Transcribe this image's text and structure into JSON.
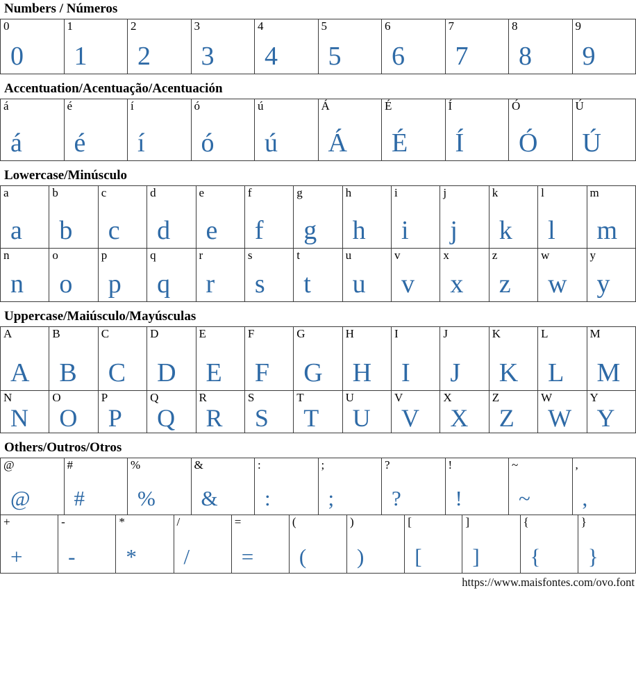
{
  "page": {
    "footer_url": "https://www.maisfontes.com/ovo.font",
    "glyph_color": "#2e6aa6",
    "label_color": "#000000",
    "border_color": "#3c3c3c",
    "background": "#ffffff"
  },
  "sections": [
    {
      "id": "numbers",
      "title": "Numbers / Números",
      "rows": [
        [
          "0",
          "1",
          "2",
          "3",
          "4",
          "5",
          "6",
          "7",
          "8",
          "9"
        ]
      ]
    },
    {
      "id": "accentuation",
      "title": "Accentuation/Acentuação/Acentuación",
      "rows": [
        [
          "á",
          "é",
          "í",
          "ó",
          "ú",
          "Á",
          "É",
          "Í",
          "Ó",
          "Ú"
        ]
      ]
    },
    {
      "id": "lowercase",
      "title": "Lowercase/Minúsculo",
      "rows": [
        [
          "a",
          "b",
          "c",
          "d",
          "e",
          "f",
          "g",
          "h",
          "i",
          "j",
          "k",
          "l",
          "m"
        ],
        [
          "n",
          "o",
          "p",
          "q",
          "r",
          "s",
          "t",
          "u",
          "v",
          "x",
          "z",
          "w",
          "y"
        ]
      ]
    },
    {
      "id": "uppercase",
      "title": "Uppercase/Maiúsculo/Mayúsculas",
      "rows": [
        [
          "A",
          "B",
          "C",
          "D",
          "E",
          "F",
          "G",
          "H",
          "I",
          "J",
          "K",
          "L",
          "M"
        ],
        [
          "N",
          "O",
          "P",
          "Q",
          "R",
          "S",
          "T",
          "U",
          "V",
          "X",
          "Z",
          "W",
          "Y"
        ]
      ]
    },
    {
      "id": "others",
      "title": "Others/Outros/Otros",
      "rows": [
        [
          "@",
          "#",
          "%",
          "&",
          ":",
          ";",
          "?",
          "!",
          "~",
          ","
        ],
        [
          "+",
          "-",
          "*",
          "/",
          "=",
          "(",
          ")",
          "[",
          "]",
          "{",
          "}"
        ]
      ]
    }
  ]
}
